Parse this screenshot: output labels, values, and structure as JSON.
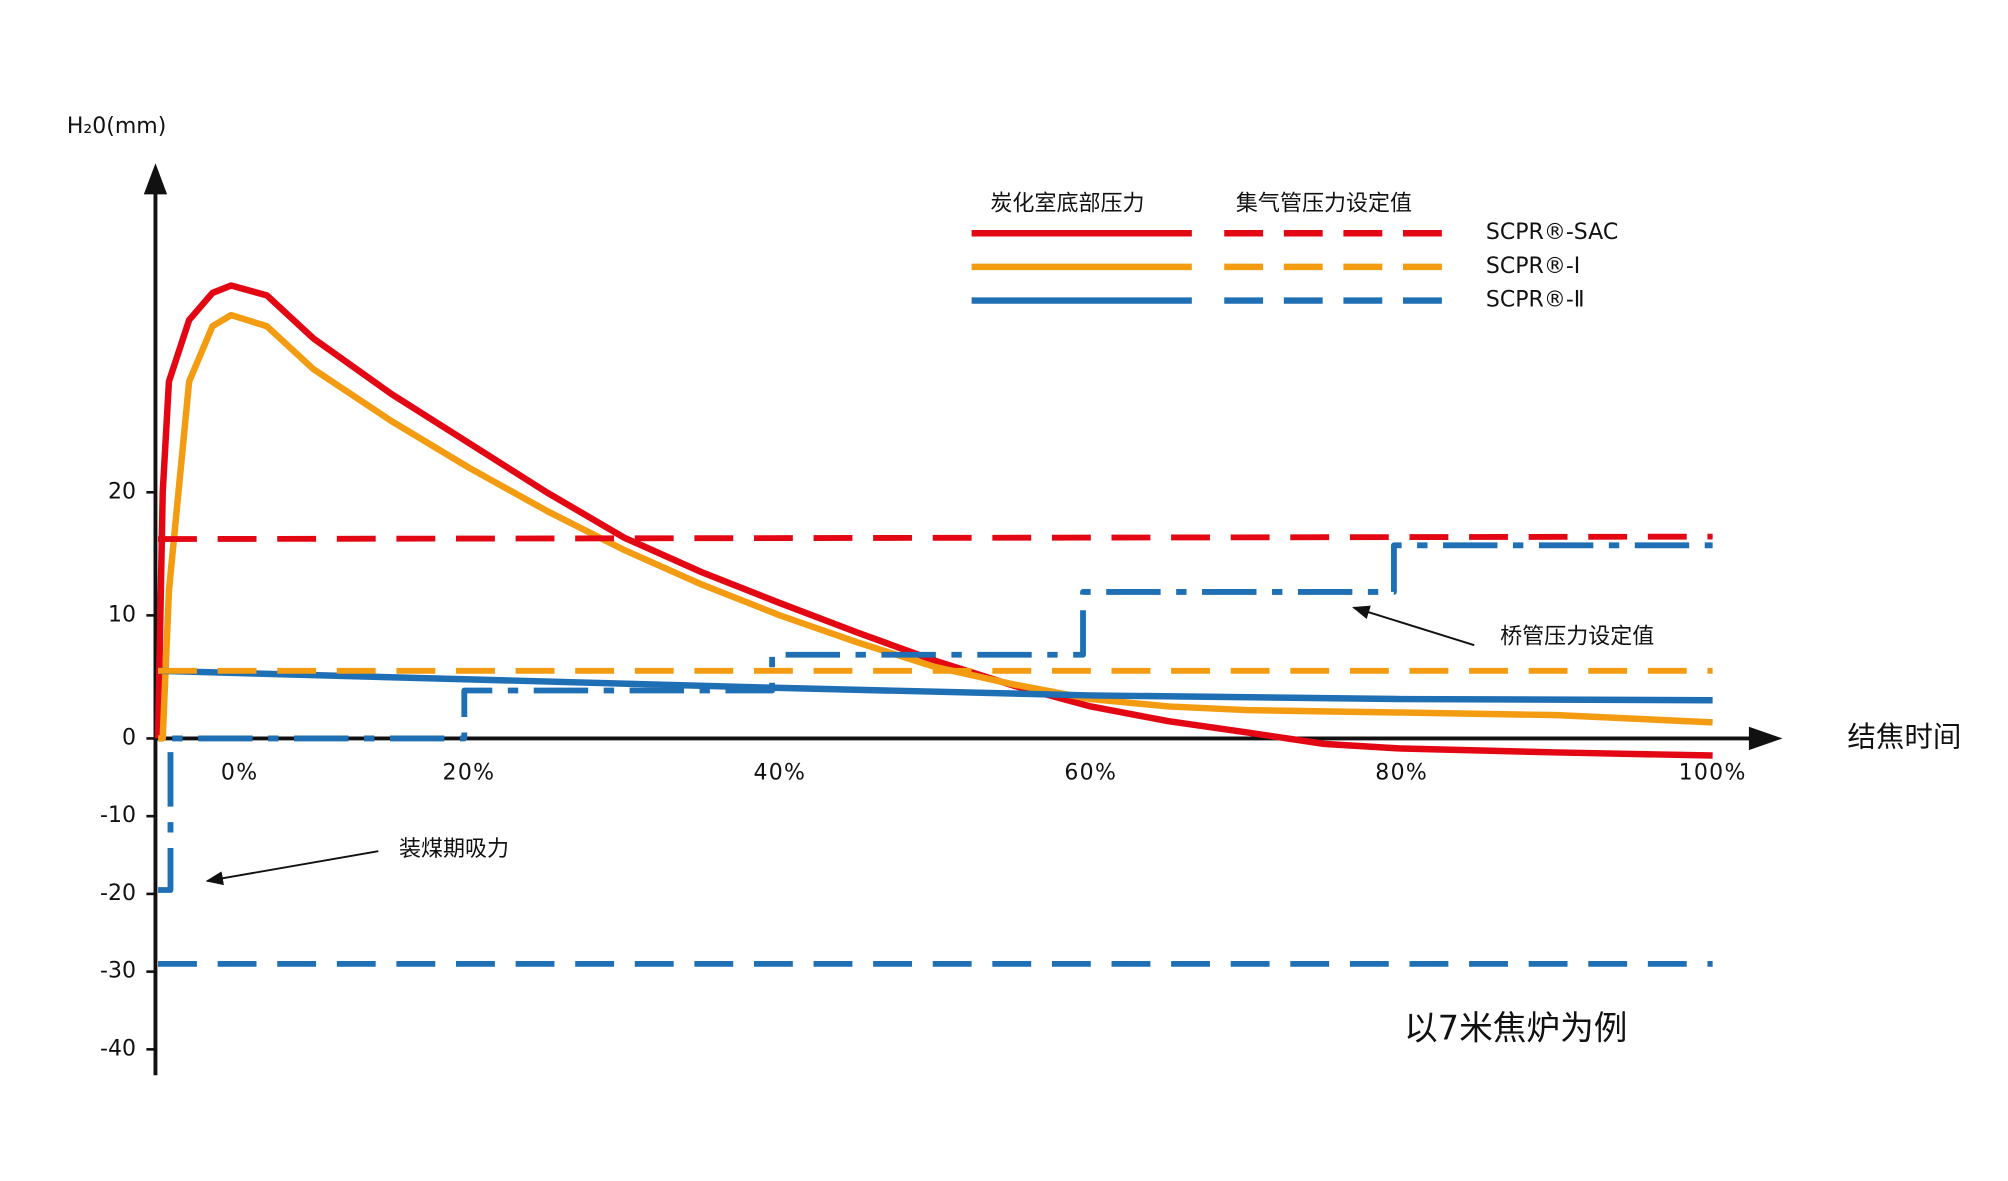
{
  "chart_data": {
    "type": "line",
    "y_label": "H₂0(mm)",
    "x_label": "结焦时间",
    "ylim": [
      -40,
      46
    ],
    "yticks": [
      -40,
      -30,
      -20,
      -10,
      0,
      10,
      20
    ],
    "xlim": [
      0,
      100
    ],
    "xticks": [
      {
        "value": 0,
        "label": "0%"
      },
      {
        "value": 20,
        "label": "20%"
      },
      {
        "value": 40,
        "label": "40%"
      },
      {
        "value": 60,
        "label": "60%"
      },
      {
        "value": 80,
        "label": "80%"
      },
      {
        "value": 100,
        "label": "100%"
      }
    ],
    "legend_columns": [
      "炭化室底部压力",
      "集气管压力设定值"
    ],
    "legend_rows": [
      "SCPR®-SAC",
      "SCPR®-I",
      "SCPR®-Ⅱ"
    ],
    "series": [
      {
        "color": "#e30613",
        "style": "solid",
        "legend_row": 0,
        "legend_column": 0,
        "x": [
          0,
          0.3,
          0.7,
          2,
          3.5,
          4.7,
          7,
          10,
          15,
          20,
          25,
          30,
          35,
          40,
          45,
          50,
          55,
          60,
          65,
          70,
          75,
          80,
          90,
          100
        ],
        "values": [
          0,
          20,
          29,
          34,
          36.2,
          36.8,
          36,
          32.5,
          28,
          24,
          20,
          16.3,
          13.5,
          11,
          8.6,
          6.3,
          4.3,
          2.6,
          1.4,
          0.5,
          -0.7,
          -1.3,
          -1.8,
          -2.2
        ]
      },
      {
        "color": "#f39c12",
        "style": "solid",
        "legend_row": 1,
        "legend_column": 0,
        "x": [
          0,
          0.3,
          0.7,
          2,
          3.5,
          4.7,
          7,
          10,
          15,
          20,
          25,
          30,
          35,
          40,
          45,
          50,
          55,
          60,
          65,
          70,
          75,
          80,
          90,
          100
        ],
        "values": [
          0,
          0,
          12,
          29,
          33.5,
          34.4,
          33.5,
          30,
          25.8,
          22,
          18.5,
          15.3,
          12.5,
          10,
          7.8,
          5.8,
          4.4,
          3.2,
          2.6,
          2.3,
          2.2,
          2.1,
          1.9,
          1.3
        ]
      },
      {
        "color": "#1f6fb5",
        "style": "solid",
        "legend_row": 2,
        "legend_column": 0,
        "x": [
          0,
          20,
          40,
          60,
          80,
          100
        ],
        "values": [
          5.5,
          4.8,
          4.1,
          3.5,
          3.2,
          3.1
        ]
      },
      {
        "color": "#e30613",
        "style": "dashed",
        "legend_row": 0,
        "legend_column": 1,
        "x": [
          0,
          100
        ],
        "values": [
          16.2,
          16.4
        ]
      },
      {
        "color": "#f39c12",
        "style": "dashed",
        "legend_row": 1,
        "legend_column": 1,
        "x": [
          0,
          100
        ],
        "values": [
          5.5,
          5.5
        ]
      },
      {
        "color": "#1f6fb5",
        "style": "dashed",
        "legend_row": 2,
        "legend_column": 1,
        "x": [
          0,
          100
        ],
        "values": [
          -29,
          -29
        ]
      },
      {
        "color": "#1f6fb5",
        "style": "dashdot",
        "x": [
          0,
          0.8,
          0.8,
          19.7,
          19.7,
          39.5,
          39.5,
          59.5,
          59.5,
          79.5,
          79.5,
          100
        ],
        "values": [
          -19.5,
          -19.5,
          0,
          0,
          3.9,
          3.9,
          6.8,
          6.8,
          11.9,
          11.9,
          15.7,
          15.7
        ]
      }
    ],
    "annotations": [
      "桥管压力设定值",
      "装煤期吸力",
      "以7米焦炉为例"
    ]
  }
}
